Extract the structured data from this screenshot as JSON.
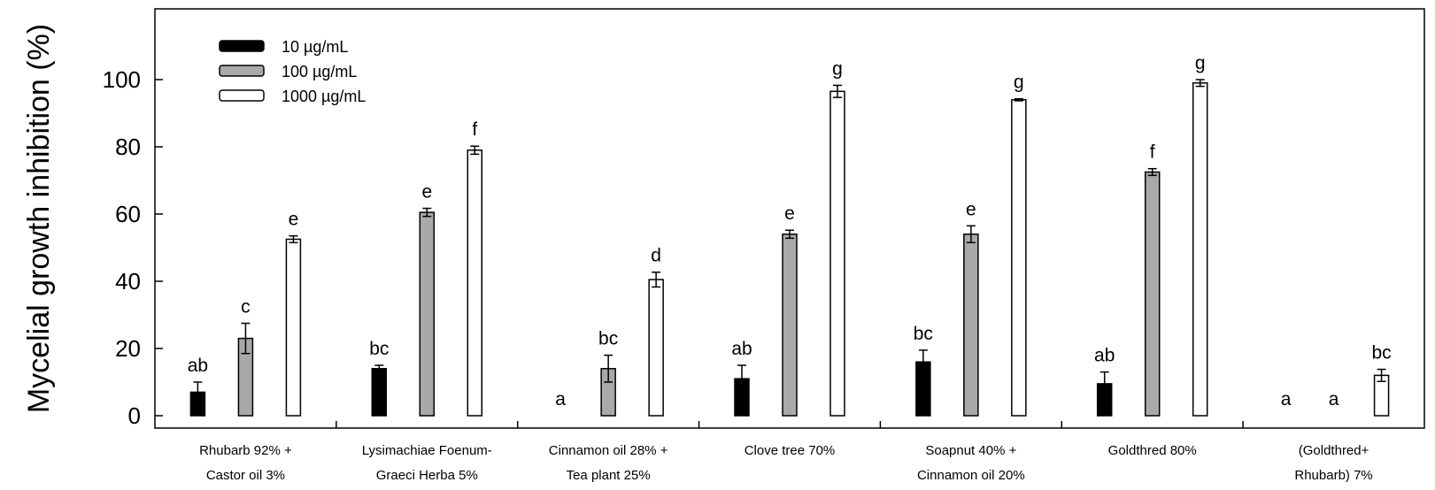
{
  "chart_data": {
    "type": "bar",
    "title": "",
    "xlabel": "",
    "ylabel": "Mycelial growth inhibition (%)",
    "ylim": [
      0,
      120
    ],
    "yticks": [
      0,
      20,
      40,
      60,
      80,
      100
    ],
    "grid": false,
    "legend_position": "top-left",
    "categories": [
      [
        "Rhubarb 92% +",
        "Castor oil 3%"
      ],
      [
        "Lysimachiae Foenum-",
        "Graeci Herba 5%"
      ],
      [
        "Cinnamon oil 28% +",
        "Tea plant 25%"
      ],
      [
        "Clove tree 70%"
      ],
      [
        "Soapnut 40% +",
        "Cinnamon oil 20%"
      ],
      [
        "Goldthred 80%"
      ],
      [
        "(Goldthred+",
        "Rhubarb) 7%"
      ]
    ],
    "series": [
      {
        "name": "10 µg/mL",
        "color": "#000000",
        "values": [
          7,
          14,
          0,
          11,
          16,
          9.5,
          0
        ],
        "errors": [
          3,
          1,
          0,
          4,
          3.5,
          3.5,
          0
        ],
        "letters": [
          "ab",
          "bc",
          "a",
          "ab",
          "bc",
          "ab",
          "a"
        ]
      },
      {
        "name": "100 µg/mL",
        "color": "#a9a9a9",
        "values": [
          23,
          60.5,
          14,
          54,
          54,
          72.5,
          0
        ],
        "errors": [
          4.5,
          1.2,
          4,
          1.2,
          2.5,
          1,
          0
        ],
        "letters": [
          "c",
          "e",
          "bc",
          "e",
          "e",
          "f",
          "a"
        ]
      },
      {
        "name": "1000 µg/mL",
        "color": "#ffffff",
        "values": [
          52.5,
          79,
          40.5,
          96.5,
          94,
          99,
          12
        ],
        "errors": [
          1,
          1.2,
          2.2,
          1.8,
          0.3,
          1,
          1.8
        ],
        "letters": [
          "e",
          "f",
          "d",
          "g",
          "g",
          "g",
          "bc"
        ]
      }
    ]
  }
}
